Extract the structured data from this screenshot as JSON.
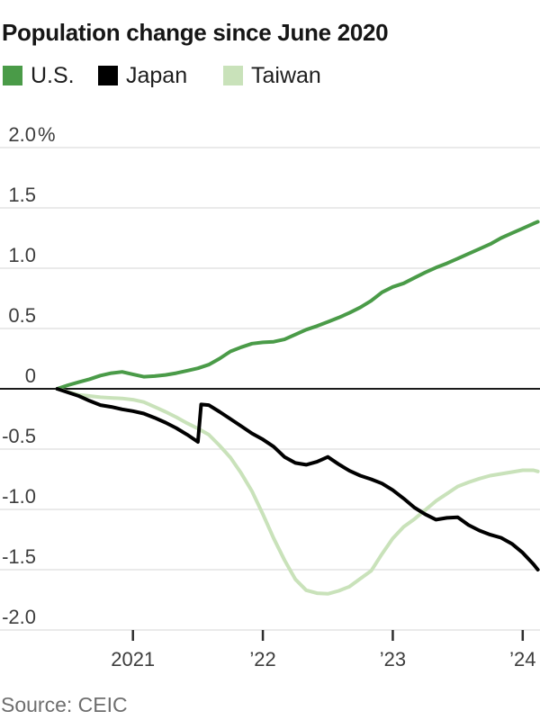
{
  "title": "Population change since June 2020",
  "source": "Source: CEIC",
  "legend": [
    {
      "label": "U.S.",
      "color": "#4a9b48"
    },
    {
      "label": "Japan",
      "color": "#000000"
    },
    {
      "label": "Taiwan",
      "color": "#c9e2ba"
    }
  ],
  "chart_data": {
    "type": "line",
    "title": "Population change since June 2020",
    "x_unit": "months since June 2020",
    "y_unit": "%",
    "ylim": [
      -2.0,
      2.0
    ],
    "grid": "horizontal",
    "legend_position": "top-left",
    "style": {
      "grid_color": "#e4e4e4",
      "zero_line_color": "#1a1a1a",
      "tick_color": "#2e2e2e",
      "draw_order": [
        0,
        2,
        1
      ]
    },
    "x_axis": {
      "ticks": [
        {
          "m": 7,
          "label": "2021"
        },
        {
          "m": 19,
          "label": "’22"
        },
        {
          "m": 31,
          "label": "’23"
        },
        {
          "m": 43,
          "label": "’24"
        }
      ]
    },
    "y_axis": {
      "ticks": [
        {
          "v": 2.0,
          "label": "2.0",
          "suffix": "%"
        },
        {
          "v": 1.5,
          "label": "1.5"
        },
        {
          "v": 1.0,
          "label": "1.0"
        },
        {
          "v": 0.5,
          "label": "0.5"
        },
        {
          "v": 0,
          "label": "0"
        },
        {
          "v": -0.5,
          "label": "-0.5"
        },
        {
          "v": -1.0,
          "label": "-1.0"
        },
        {
          "v": -1.5,
          "label": "-1.5"
        },
        {
          "v": -2.0,
          "label": "-2.0"
        }
      ]
    },
    "series": [
      {
        "name": "U.S.",
        "color": "#4a9b48",
        "points": [
          [
            0,
            0
          ],
          [
            1,
            0.03
          ],
          [
            2,
            0.055
          ],
          [
            3,
            0.08
          ],
          [
            4,
            0.11
          ],
          [
            5,
            0.13
          ],
          [
            6,
            0.14
          ],
          [
            7,
            0.12
          ],
          [
            8,
            0.1
          ],
          [
            9,
            0.105
          ],
          [
            10,
            0.115
          ],
          [
            11,
            0.13
          ],
          [
            12,
            0.15
          ],
          [
            13,
            0.17
          ],
          [
            14,
            0.2
          ],
          [
            15,
            0.25
          ],
          [
            16,
            0.31
          ],
          [
            17,
            0.345
          ],
          [
            18,
            0.375
          ],
          [
            19,
            0.385
          ],
          [
            20,
            0.39
          ],
          [
            21,
            0.41
          ],
          [
            22,
            0.45
          ],
          [
            23,
            0.49
          ],
          [
            24,
            0.52
          ],
          [
            25,
            0.555
          ],
          [
            26,
            0.59
          ],
          [
            27,
            0.63
          ],
          [
            28,
            0.675
          ],
          [
            29,
            0.73
          ],
          [
            30,
            0.8
          ],
          [
            31,
            0.845
          ],
          [
            32,
            0.875
          ],
          [
            33,
            0.92
          ],
          [
            34,
            0.965
          ],
          [
            35,
            1.005
          ],
          [
            36,
            1.04
          ],
          [
            37,
            1.08
          ],
          [
            38,
            1.12
          ],
          [
            39,
            1.16
          ],
          [
            40,
            1.2
          ],
          [
            41,
            1.25
          ],
          [
            42,
            1.29
          ],
          [
            43,
            1.33
          ],
          [
            44,
            1.37
          ],
          [
            44.4,
            1.385
          ]
        ]
      },
      {
        "name": "Japan",
        "color": "#000000",
        "points": [
          [
            0,
            0
          ],
          [
            1,
            -0.03
          ],
          [
            2,
            -0.06
          ],
          [
            3,
            -0.1
          ],
          [
            4,
            -0.135
          ],
          [
            5,
            -0.15
          ],
          [
            6,
            -0.17
          ],
          [
            7,
            -0.185
          ],
          [
            8,
            -0.205
          ],
          [
            9,
            -0.24
          ],
          [
            10,
            -0.28
          ],
          [
            11,
            -0.325
          ],
          [
            12,
            -0.38
          ],
          [
            13,
            -0.44
          ],
          [
            13.3,
            -0.13
          ],
          [
            14,
            -0.135
          ],
          [
            15,
            -0.19
          ],
          [
            16,
            -0.25
          ],
          [
            17,
            -0.31
          ],
          [
            18,
            -0.37
          ],
          [
            19,
            -0.42
          ],
          [
            20,
            -0.48
          ],
          [
            21,
            -0.565
          ],
          [
            22,
            -0.615
          ],
          [
            23,
            -0.63
          ],
          [
            24,
            -0.605
          ],
          [
            25,
            -0.565
          ],
          [
            26,
            -0.625
          ],
          [
            27,
            -0.68
          ],
          [
            28,
            -0.72
          ],
          [
            29,
            -0.75
          ],
          [
            30,
            -0.785
          ],
          [
            31,
            -0.84
          ],
          [
            32,
            -0.91
          ],
          [
            33,
            -0.985
          ],
          [
            34,
            -1.04
          ],
          [
            35,
            -1.085
          ],
          [
            36,
            -1.07
          ],
          [
            37,
            -1.065
          ],
          [
            38,
            -1.13
          ],
          [
            39,
            -1.175
          ],
          [
            40,
            -1.21
          ],
          [
            41,
            -1.235
          ],
          [
            42,
            -1.285
          ],
          [
            43,
            -1.36
          ],
          [
            44,
            -1.455
          ],
          [
            44.4,
            -1.5
          ]
        ]
      },
      {
        "name": "Taiwan",
        "color": "#c9e2ba",
        "points": [
          [
            0,
            0
          ],
          [
            1,
            -0.025
          ],
          [
            2,
            -0.05
          ],
          [
            3,
            -0.06
          ],
          [
            4,
            -0.07
          ],
          [
            5,
            -0.075
          ],
          [
            6,
            -0.08
          ],
          [
            7,
            -0.09
          ],
          [
            8,
            -0.11
          ],
          [
            9,
            -0.15
          ],
          [
            10,
            -0.19
          ],
          [
            11,
            -0.235
          ],
          [
            12,
            -0.285
          ],
          [
            13,
            -0.33
          ],
          [
            14,
            -0.38
          ],
          [
            15,
            -0.47
          ],
          [
            16,
            -0.57
          ],
          [
            17,
            -0.7
          ],
          [
            18,
            -0.85
          ],
          [
            19,
            -1.04
          ],
          [
            20,
            -1.24
          ],
          [
            21,
            -1.42
          ],
          [
            22,
            -1.58
          ],
          [
            23,
            -1.67
          ],
          [
            24,
            -1.695
          ],
          [
            25,
            -1.7
          ],
          [
            26,
            -1.675
          ],
          [
            27,
            -1.64
          ],
          [
            28,
            -1.575
          ],
          [
            29,
            -1.51
          ],
          [
            30,
            -1.37
          ],
          [
            31,
            -1.24
          ],
          [
            32,
            -1.145
          ],
          [
            33,
            -1.08
          ],
          [
            34,
            -1.005
          ],
          [
            35,
            -0.93
          ],
          [
            36,
            -0.87
          ],
          [
            37,
            -0.81
          ],
          [
            38,
            -0.775
          ],
          [
            39,
            -0.745
          ],
          [
            40,
            -0.72
          ],
          [
            41,
            -0.705
          ],
          [
            42,
            -0.69
          ],
          [
            43,
            -0.675
          ],
          [
            44,
            -0.675
          ],
          [
            44.4,
            -0.685
          ]
        ]
      }
    ]
  }
}
